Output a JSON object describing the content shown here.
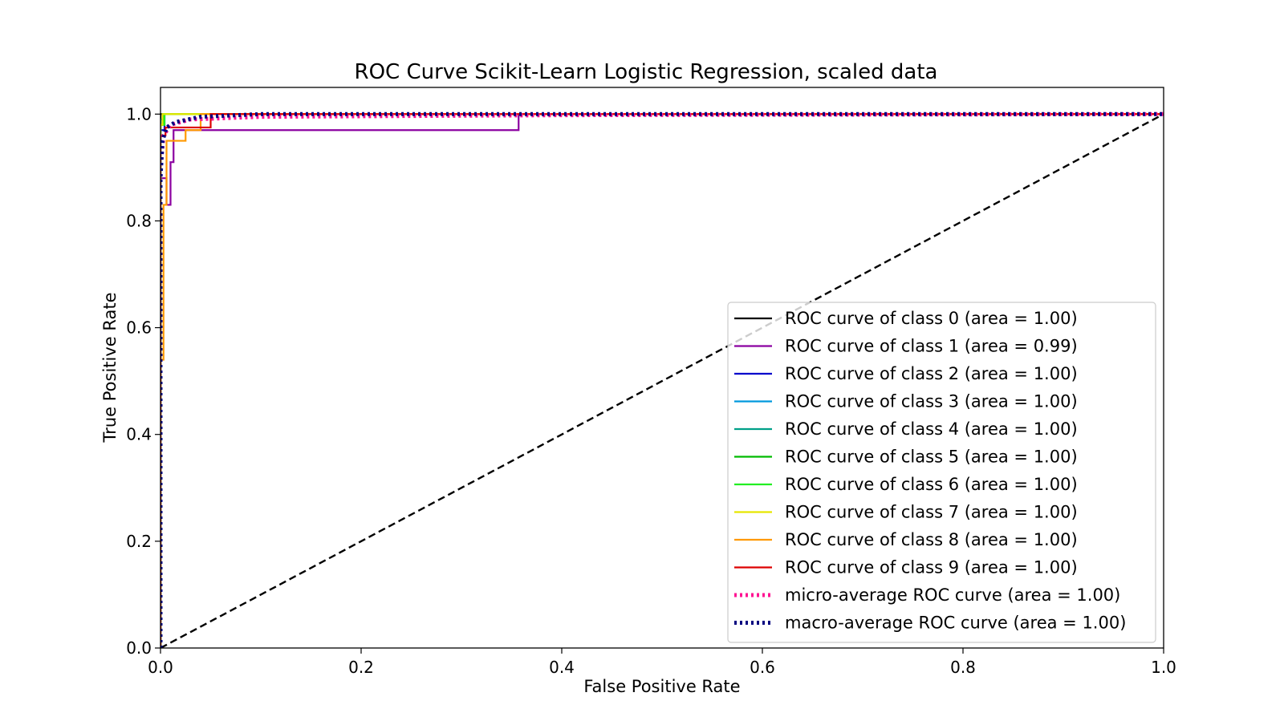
{
  "chart_data": {
    "type": "line",
    "title": "ROC Curve Scikit-Learn Logistic Regression, scaled data",
    "xlabel": "False Positive Rate",
    "ylabel": "True Positive Rate",
    "xlim": [
      0.0,
      1.0
    ],
    "ylim": [
      0.0,
      1.05
    ],
    "x_ticks": [
      "0.0",
      "0.2",
      "0.4",
      "0.6",
      "0.8",
      "1.0"
    ],
    "y_ticks": [
      "0.0",
      "0.2",
      "0.4",
      "0.6",
      "0.8",
      "1.0"
    ],
    "grid": false,
    "legend_position": "lower-right",
    "series": [
      {
        "name": "ROC curve of class 0 (area = 1.00)",
        "color": "#000000",
        "style": "solid",
        "x": [
          0,
          0,
          1
        ],
        "y": [
          0,
          1,
          1
        ]
      },
      {
        "name": "ROC curve of class 1 (area = 0.99)",
        "color": "#8b00a0",
        "style": "solid",
        "x": [
          0,
          0,
          0.006,
          0.006,
          0.01,
          0.01,
          0.013,
          0.013,
          0.357,
          0.357,
          1
        ],
        "y": [
          0,
          0.88,
          0.88,
          0.83,
          0.83,
          0.91,
          0.91,
          0.97,
          0.97,
          1.0,
          1.0
        ]
      },
      {
        "name": "ROC curve of class 2 (area = 1.00)",
        "color": "#0000cc",
        "style": "solid",
        "x": [
          0,
          0,
          0.004,
          0.004,
          1
        ],
        "y": [
          0,
          0.97,
          0.97,
          1.0,
          1.0
        ]
      },
      {
        "name": "ROC curve of class 3 (area = 1.00)",
        "color": "#0099dd",
        "style": "solid",
        "x": [
          0,
          0,
          0.003,
          0.003,
          1
        ],
        "y": [
          0,
          0.98,
          0.98,
          1.0,
          1.0
        ]
      },
      {
        "name": "ROC curve of class 4 (area = 1.00)",
        "color": "#00a088",
        "style": "solid",
        "x": [
          0,
          0,
          0.002,
          0.002,
          1
        ],
        "y": [
          0,
          0.99,
          0.99,
          1.0,
          1.0
        ]
      },
      {
        "name": "ROC curve of class 5 (area = 1.00)",
        "color": "#00bb00",
        "style": "solid",
        "x": [
          0,
          0,
          0.003,
          0.003,
          1
        ],
        "y": [
          0,
          0.98,
          0.98,
          1.0,
          1.0
        ]
      },
      {
        "name": "ROC curve of class 6 (area = 1.00)",
        "color": "#22ee22",
        "style": "solid",
        "x": [
          0,
          0,
          0.004,
          0.004,
          1
        ],
        "y": [
          0,
          0.98,
          0.98,
          1.0,
          1.0
        ]
      },
      {
        "name": "ROC curve of class 7 (area = 1.00)",
        "color": "#e6e600",
        "style": "solid",
        "x": [
          0,
          0,
          0.002,
          0.002,
          1
        ],
        "y": [
          0,
          0.98,
          0.98,
          1.0,
          1.0
        ]
      },
      {
        "name": "ROC curve of class 8 (area = 1.00)",
        "color": "#ff9900",
        "style": "solid",
        "x": [
          0,
          0,
          0.003,
          0.003,
          0.006,
          0.006,
          0.025,
          0.025,
          0.04,
          0.04,
          1
        ],
        "y": [
          0,
          0.54,
          0.54,
          0.83,
          0.83,
          0.95,
          0.95,
          0.97,
          0.97,
          1.0,
          1.0
        ]
      },
      {
        "name": "ROC curve of class 9 (area = 1.00)",
        "color": "#dd0000",
        "style": "solid",
        "x": [
          0,
          0,
          0.005,
          0.005,
          0.05,
          0.05,
          1
        ],
        "y": [
          0,
          0.96,
          0.96,
          0.975,
          0.975,
          1.0,
          1.0
        ]
      },
      {
        "name": "micro-average ROC curve (area = 1.00)",
        "color": "#ff1493",
        "style": "dotted",
        "x": [
          0,
          0.0,
          0.003,
          0.01,
          0.03,
          0.1,
          0.4,
          1
        ],
        "y": [
          0,
          0.9,
          0.96,
          0.98,
          0.99,
          0.995,
          0.998,
          1.0
        ]
      },
      {
        "name": "macro-average ROC curve (area = 1.00)",
        "color": "#000080",
        "style": "dotted",
        "x": [
          0,
          0.0,
          0.002,
          0.006,
          0.015,
          0.04,
          0.1,
          1
        ],
        "y": [
          0,
          0.88,
          0.95,
          0.975,
          0.985,
          0.995,
          1.0,
          1.0
        ]
      }
    ],
    "reference_line": {
      "x": [
        0,
        1
      ],
      "y": [
        0,
        1
      ],
      "color": "#000000",
      "style": "dashed"
    }
  }
}
